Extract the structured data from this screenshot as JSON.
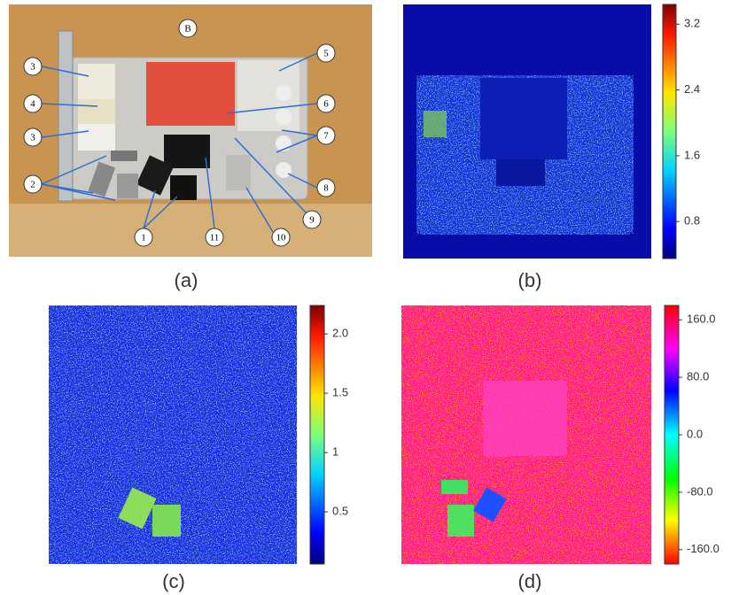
{
  "photo": {
    "label": "(a)",
    "callouts": [
      "B",
      "3",
      "4",
      "3",
      "2",
      "5",
      "6",
      "7",
      "8",
      "9",
      "10",
      "11",
      "1"
    ]
  },
  "maps": [
    {
      "label": "(b)",
      "colormap": "jet",
      "clim": [
        0.35,
        3.44
      ],
      "ticks": [
        0.8,
        1.6,
        2.4,
        3.2
      ]
    },
    {
      "label": "(c)",
      "colormap": "jet",
      "clim": [
        0.06,
        2.24
      ],
      "ticks": [
        0.5,
        1.0,
        1.5,
        {
          "value": 2,
          "label": "2.0"
        }
      ]
    },
    {
      "label": "(d)",
      "colormap": "hsv",
      "clim": [
        -180,
        180
      ],
      "ticks": [
        {
          "value": -160,
          "label": "-160.0"
        },
        {
          "value": -80,
          "label": "-80.0"
        },
        {
          "value": 0,
          "label": "0.0"
        },
        {
          "value": 80,
          "label": "80.0"
        },
        {
          "value": 160,
          "label": "160.0"
        }
      ]
    }
  ]
}
